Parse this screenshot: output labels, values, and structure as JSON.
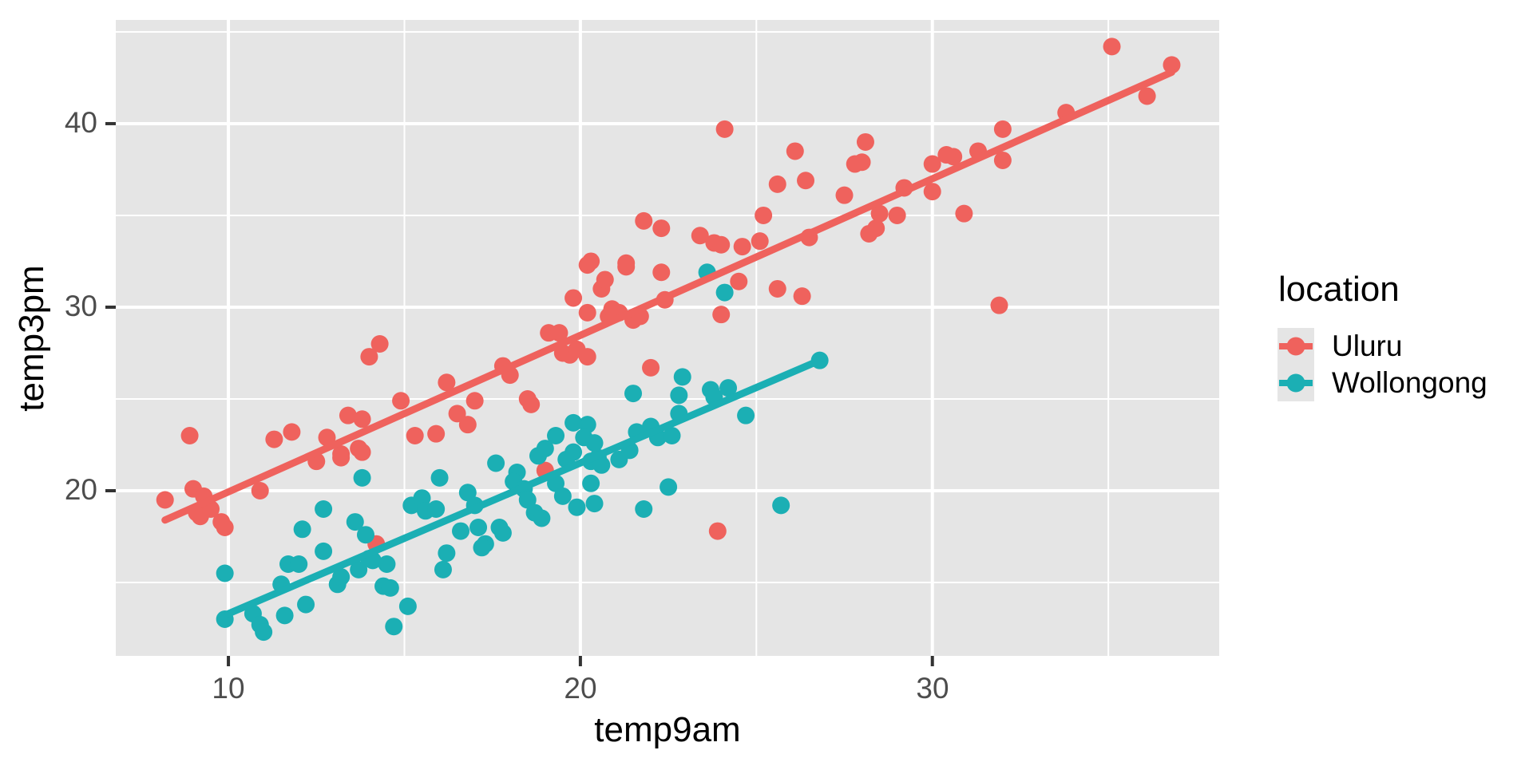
{
  "chart_data": {
    "type": "scatter",
    "title": "",
    "xlabel": "temp9am",
    "ylabel": "temp3pm",
    "x_domain": [
      6.8,
      38.15
    ],
    "y_domain": [
      11.0,
      45.65
    ],
    "x_major_ticks": [
      10,
      20,
      30
    ],
    "x_minor_ticks": [
      15,
      25,
      35
    ],
    "y_major_ticks": [
      20,
      30,
      40
    ],
    "y_minor_ticks": [
      15,
      25,
      35,
      45
    ],
    "x_tick_labels": [
      "10",
      "20",
      "30"
    ],
    "y_tick_labels": [
      "40",
      "30",
      "20"
    ],
    "grid": true,
    "legend_position": "right",
    "panel_bg": "#E5E5E5",
    "grid_color": "#FFFFFF",
    "tick_color": "#333333",
    "tick_label_color": "#4D4D4D",
    "legend": {
      "title": "location",
      "entries": [
        {
          "label": "Uluru",
          "color": "#EF625D"
        },
        {
          "label": "Wollongong",
          "color": "#1BAFB4"
        }
      ]
    },
    "series": [
      {
        "name": "Uluru",
        "color": "#EF625D",
        "trend": {
          "x1": 8.2,
          "y1": 18.4,
          "x2": 36.8,
          "y2": 42.8
        },
        "points": [
          [
            8.2,
            19.5
          ],
          [
            8.9,
            23.0
          ],
          [
            9.0,
            20.1
          ],
          [
            9.3,
            19.7
          ],
          [
            9.1,
            18.8
          ],
          [
            9.2,
            18.6
          ],
          [
            9.5,
            19.0
          ],
          [
            9.8,
            18.3
          ],
          [
            9.9,
            18.0
          ],
          [
            10.9,
            20.0
          ],
          [
            11.3,
            22.8
          ],
          [
            11.8,
            23.2
          ],
          [
            12.5,
            21.6
          ],
          [
            12.8,
            22.9
          ],
          [
            13.2,
            21.8
          ],
          [
            13.2,
            22.0
          ],
          [
            13.4,
            24.1
          ],
          [
            13.7,
            22.3
          ],
          [
            13.8,
            23.9
          ],
          [
            13.8,
            22.1
          ],
          [
            14.0,
            27.3
          ],
          [
            14.3,
            28.0
          ],
          [
            14.2,
            17.1
          ],
          [
            14.9,
            24.9
          ],
          [
            15.3,
            23.0
          ],
          [
            15.9,
            23.1
          ],
          [
            16.2,
            25.9
          ],
          [
            16.5,
            24.2
          ],
          [
            16.8,
            23.6
          ],
          [
            17.0,
            24.9
          ],
          [
            17.8,
            26.8
          ],
          [
            18.0,
            26.3
          ],
          [
            18.5,
            25.0
          ],
          [
            18.6,
            24.7
          ],
          [
            19.0,
            21.1
          ],
          [
            19.1,
            28.6
          ],
          [
            19.4,
            28.6
          ],
          [
            19.5,
            27.5
          ],
          [
            19.7,
            27.4
          ],
          [
            19.9,
            27.7
          ],
          [
            20.2,
            27.3
          ],
          [
            19.8,
            30.5
          ],
          [
            20.2,
            29.7
          ],
          [
            20.8,
            29.5
          ],
          [
            20.9,
            29.9
          ],
          [
            21.1,
            29.7
          ],
          [
            21.5,
            29.3
          ],
          [
            21.7,
            29.5
          ],
          [
            22.4,
            30.4
          ],
          [
            20.2,
            32.3
          ],
          [
            20.6,
            31.0
          ],
          [
            21.3,
            32.2
          ],
          [
            22.3,
            31.9
          ],
          [
            22.0,
            26.7
          ],
          [
            24.0,
            29.6
          ],
          [
            24.5,
            31.4
          ],
          [
            25.6,
            31.0
          ],
          [
            26.3,
            30.6
          ],
          [
            23.9,
            17.8
          ],
          [
            31.9,
            30.1
          ],
          [
            24.1,
            39.7
          ],
          [
            26.1,
            38.5
          ],
          [
            26.4,
            36.9
          ],
          [
            25.6,
            36.7
          ],
          [
            25.2,
            35.0
          ],
          [
            21.8,
            34.7
          ],
          [
            22.3,
            34.3
          ],
          [
            23.4,
            33.9
          ],
          [
            23.8,
            33.5
          ],
          [
            24.0,
            33.4
          ],
          [
            24.6,
            33.3
          ],
          [
            25.1,
            33.6
          ],
          [
            26.5,
            33.8
          ],
          [
            20.3,
            32.5
          ],
          [
            21.3,
            32.4
          ],
          [
            20.7,
            31.5
          ],
          [
            27.5,
            36.1
          ],
          [
            28.0,
            37.9
          ],
          [
            27.8,
            37.8
          ],
          [
            28.1,
            39.0
          ],
          [
            28.5,
            35.1
          ],
          [
            29.0,
            35.0
          ],
          [
            29.2,
            36.5
          ],
          [
            30.0,
            37.8
          ],
          [
            30.0,
            36.3
          ],
          [
            30.6,
            38.2
          ],
          [
            30.4,
            38.3
          ],
          [
            31.3,
            38.5
          ],
          [
            30.9,
            35.1
          ],
          [
            28.2,
            34.0
          ],
          [
            28.4,
            34.3
          ],
          [
            32.0,
            39.7
          ],
          [
            32.0,
            38.0
          ],
          [
            33.8,
            40.6
          ],
          [
            35.1,
            44.2
          ],
          [
            36.1,
            41.5
          ],
          [
            36.8,
            43.2
          ]
        ]
      },
      {
        "name": "Wollongong",
        "color": "#1BAFB4",
        "trend": {
          "x1": 10.0,
          "y1": 13.3,
          "x2": 26.8,
          "y2": 27.1
        },
        "points": [
          [
            9.9,
            15.5
          ],
          [
            9.9,
            13.0
          ],
          [
            10.7,
            13.3
          ],
          [
            10.9,
            12.7
          ],
          [
            11.0,
            12.3
          ],
          [
            11.6,
            13.2
          ],
          [
            11.5,
            14.9
          ],
          [
            11.7,
            16.0
          ],
          [
            12.0,
            16.0
          ],
          [
            12.2,
            13.8
          ],
          [
            12.1,
            17.9
          ],
          [
            12.7,
            16.7
          ],
          [
            12.7,
            19.0
          ],
          [
            13.1,
            14.9
          ],
          [
            13.2,
            15.3
          ],
          [
            13.6,
            18.3
          ],
          [
            13.7,
            15.7
          ],
          [
            13.8,
            20.7
          ],
          [
            13.9,
            17.6
          ],
          [
            14.0,
            16.3
          ],
          [
            14.1,
            16.2
          ],
          [
            14.5,
            16.0
          ],
          [
            14.4,
            14.8
          ],
          [
            14.6,
            14.7
          ],
          [
            14.7,
            12.6
          ],
          [
            15.1,
            13.7
          ],
          [
            15.2,
            19.2
          ],
          [
            15.5,
            19.6
          ],
          [
            15.6,
            18.9
          ],
          [
            15.9,
            19.0
          ],
          [
            16.0,
            20.7
          ],
          [
            16.2,
            16.6
          ],
          [
            16.1,
            15.7
          ],
          [
            16.6,
            17.8
          ],
          [
            16.8,
            19.9
          ],
          [
            17.0,
            19.2
          ],
          [
            17.1,
            18.0
          ],
          [
            17.3,
            17.1
          ],
          [
            17.6,
            21.5
          ],
          [
            18.2,
            21.0
          ],
          [
            18.1,
            20.5
          ],
          [
            18.4,
            20.1
          ],
          [
            18.8,
            21.9
          ],
          [
            19.3,
            20.4
          ],
          [
            19.6,
            21.7
          ],
          [
            19.8,
            22.1
          ],
          [
            20.3,
            21.6
          ],
          [
            20.5,
            21.8
          ],
          [
            20.6,
            21.4
          ],
          [
            21.1,
            21.7
          ],
          [
            21.4,
            22.2
          ],
          [
            18.5,
            19.5
          ],
          [
            18.7,
            18.8
          ],
          [
            18.9,
            18.5
          ],
          [
            19.5,
            19.7
          ],
          [
            19.9,
            19.1
          ],
          [
            20.4,
            19.3
          ],
          [
            20.3,
            20.4
          ],
          [
            17.7,
            18.0
          ],
          [
            17.8,
            17.7
          ],
          [
            17.2,
            16.9
          ],
          [
            22.5,
            20.2
          ],
          [
            21.8,
            19.0
          ],
          [
            25.7,
            19.2
          ],
          [
            21.5,
            25.3
          ],
          [
            22.9,
            26.2
          ],
          [
            22.8,
            25.2
          ],
          [
            22.8,
            24.2
          ],
          [
            23.7,
            25.5
          ],
          [
            23.8,
            25.1
          ],
          [
            24.2,
            25.6
          ],
          [
            24.7,
            24.1
          ],
          [
            19.3,
            23.0
          ],
          [
            19.0,
            22.3
          ],
          [
            20.2,
            23.6
          ],
          [
            20.1,
            22.9
          ],
          [
            20.4,
            22.6
          ],
          [
            21.6,
            23.2
          ],
          [
            22.0,
            23.5
          ],
          [
            22.2,
            22.9
          ],
          [
            22.6,
            23.0
          ],
          [
            19.8,
            23.7
          ],
          [
            23.6,
            31.9
          ],
          [
            24.1,
            30.8
          ],
          [
            26.8,
            27.1
          ]
        ]
      }
    ]
  }
}
